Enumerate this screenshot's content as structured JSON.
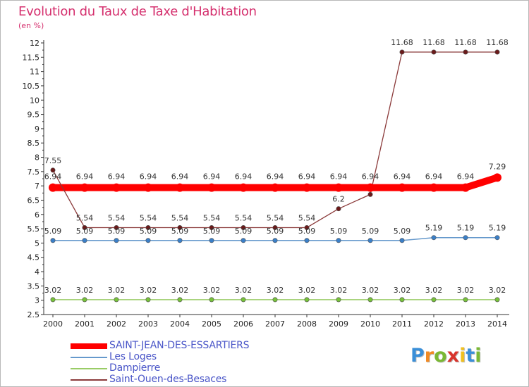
{
  "chart_data": {
    "type": "line",
    "title": "Evolution du Taux de Taxe d'Habitation",
    "subtitle": "(en %)",
    "xlabel": "",
    "ylabel": "",
    "ylim": [
      2.5,
      12
    ],
    "y_ticks": [
      "2.5",
      "3",
      "3.5",
      "4",
      "4.5",
      "5",
      "5.5",
      "6",
      "6.5",
      "7",
      "7.5",
      "8",
      "8.5",
      "9",
      "9.5",
      "10",
      "10.5",
      "11",
      "11.5",
      "12"
    ],
    "x": [
      "2000",
      "2001",
      "2002",
      "2003",
      "2004",
      "2005",
      "2006",
      "2007",
      "2008",
      "2009",
      "2010",
      "2011",
      "2012",
      "2013",
      "2014"
    ],
    "series": [
      {
        "name": "SAINT-JEAN-DES-ESSARTIERS",
        "color": "#ff0000",
        "marker_color": "#ff0000",
        "values": [
          6.94,
          6.94,
          6.94,
          6.94,
          6.94,
          6.94,
          6.94,
          6.94,
          6.94,
          6.94,
          6.94,
          6.94,
          6.94,
          6.94,
          7.29
        ],
        "labels": [
          "6.94",
          "6.94",
          "6.94",
          "6.94",
          "6.94",
          "6.94",
          "6.94",
          "6.94",
          "6.94",
          "6.94",
          "6.94",
          "6.94",
          "6.94",
          "6.94",
          "7.29"
        ]
      },
      {
        "name": "Les Loges",
        "color": "#6699cc",
        "marker_color": "#3a7fc8",
        "values": [
          5.09,
          5.09,
          5.09,
          5.09,
          5.09,
          5.09,
          5.09,
          5.09,
          5.09,
          5.09,
          5.09,
          5.09,
          5.19,
          5.19,
          5.19
        ],
        "labels": [
          "5.09",
          "5.09",
          "5.09",
          "5.09",
          "5.09",
          "5.09",
          "5.09",
          "5.09",
          "5.09",
          "5.09",
          "5.09",
          "5.09",
          "5.19",
          "5.19",
          "5.19"
        ]
      },
      {
        "name": "Dampierre",
        "color": "#99cc66",
        "marker_color": "#77c23a",
        "values": [
          3.02,
          3.02,
          3.02,
          3.02,
          3.02,
          3.02,
          3.02,
          3.02,
          3.02,
          3.02,
          3.02,
          3.02,
          3.02,
          3.02,
          3.02
        ],
        "labels": [
          "3.02",
          "3.02",
          "3.02",
          "3.02",
          "3.02",
          "3.02",
          "3.02",
          "3.02",
          "3.02",
          "3.02",
          "3.02",
          "3.02",
          "3.02",
          "3.02",
          "3.02"
        ]
      },
      {
        "name": "Saint-Ouen-des-Besaces",
        "color": "#8b3a3a",
        "marker_color": "#6b1a1a",
        "values": [
          7.55,
          5.54,
          5.54,
          5.54,
          5.54,
          5.54,
          5.54,
          5.54,
          5.54,
          6.2,
          6.7,
          11.68,
          11.68,
          11.68,
          11.68
        ],
        "labels": [
          "7.55",
          "5.54",
          "5.54",
          "5.54",
          "5.54",
          "5.54",
          "5.54",
          "5.54",
          "5.54",
          "6.2",
          "",
          "11.68",
          "11.68",
          "11.68",
          "11.68"
        ]
      }
    ],
    "legend_position": "bottom-left",
    "grid": false
  },
  "legend": {
    "items": [
      {
        "label": "SAINT-JEAN-DES-ESSARTIERS"
      },
      {
        "label": "Les Loges"
      },
      {
        "label": "Dampierre"
      },
      {
        "label": "Saint-Ouen-des-Besaces"
      }
    ]
  },
  "logo": {
    "letters": [
      "P",
      "r",
      "o",
      "x",
      "i",
      "t",
      "i"
    ],
    "colors": [
      "#3a8fd8",
      "#f08a24",
      "#7ab834",
      "#d8342c",
      "#f0c020",
      "#3a8fd8",
      "#7ab834"
    ]
  }
}
